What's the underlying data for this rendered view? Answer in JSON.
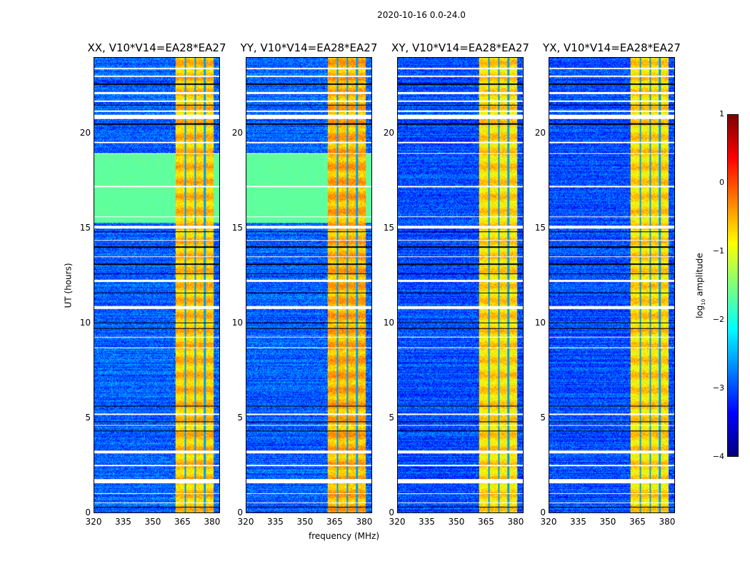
{
  "chart_data": {
    "type": "heatmap",
    "title": "2020-10-16 0.0-24.0",
    "xlabel": "frequency (MHz)",
    "ylabel": "UT (hours)",
    "xlim": [
      320,
      384
    ],
    "ylim": [
      0,
      24
    ],
    "xticks": [
      320,
      335,
      350,
      365,
      380
    ],
    "yticks": [
      0,
      5,
      10,
      15,
      20
    ],
    "colorbar": {
      "label": "log10 amplitude",
      "range": [
        -4,
        1
      ],
      "ticks": [
        "1",
        "0",
        "−1",
        "−2",
        "−3",
        "−4"
      ],
      "colormap": "jet"
    },
    "panels": [
      {
        "title": "XX, V10*V14=EA28*EA27",
        "pol": "XX",
        "base_level": -2.9,
        "green_block": true,
        "band_level": -0.6
      },
      {
        "title": "YY, V10*V14=EA28*EA27",
        "pol": "YY",
        "base_level": -2.9,
        "green_block": true,
        "band_level": -0.5
      },
      {
        "title": "XY, V10*V14=EA28*EA27",
        "pol": "XY",
        "base_level": -3.0,
        "green_block": false,
        "band_level": -0.7
      },
      {
        "title": "YX, V10*V14=EA28*EA27",
        "pol": "YX",
        "base_level": -3.0,
        "green_block": false,
        "band_level": -0.7
      }
    ],
    "bright_band_mhz": [
      361.5,
      381
    ],
    "band_gaps_mhz": [
      366.5,
      371.5,
      376.5
    ],
    "green_block_ut": [
      15.3,
      19.0
    ],
    "flagged_ut_white": [
      [
        23.4,
        23.5
      ],
      [
        23.0,
        23.08
      ],
      [
        22.1,
        22.2
      ],
      [
        21.7,
        21.78
      ],
      [
        21.15,
        21.25
      ],
      [
        20.8,
        21.0
      ],
      [
        19.5,
        19.58
      ],
      [
        18.95,
        19.0
      ],
      [
        17.2,
        17.25
      ],
      [
        15.6,
        15.65
      ],
      [
        15.0,
        15.15
      ],
      [
        14.35,
        14.4
      ],
      [
        13.5,
        13.55
      ],
      [
        12.2,
        12.3
      ],
      [
        10.75,
        10.9
      ],
      [
        9.25,
        9.3
      ],
      [
        8.7,
        8.75
      ],
      [
        5.15,
        5.25
      ],
      [
        4.6,
        4.65
      ],
      [
        3.15,
        3.3
      ],
      [
        2.45,
        2.55
      ],
      [
        1.55,
        1.8
      ],
      [
        1.0,
        1.05
      ],
      [
        0.5,
        0.55
      ]
    ],
    "flagged_ut_black": [
      [
        22.6,
        22.65
      ],
      [
        21.5,
        21.55
      ],
      [
        20.5,
        20.55
      ],
      [
        14.8,
        14.85
      ],
      [
        14.0,
        14.05
      ],
      [
        13.1,
        13.15
      ],
      [
        12.6,
        12.63
      ],
      [
        11.6,
        11.63
      ],
      [
        10.0,
        10.05
      ],
      [
        9.7,
        9.73
      ],
      [
        5.6,
        5.65
      ],
      [
        4.8,
        4.83
      ],
      [
        4.3,
        4.33
      ],
      [
        0.3,
        0.33
      ]
    ]
  }
}
